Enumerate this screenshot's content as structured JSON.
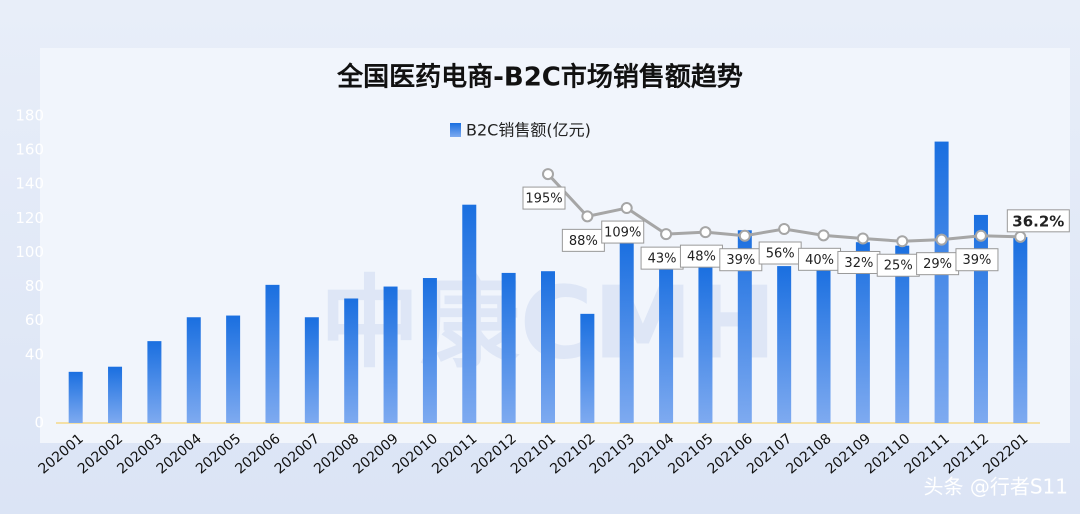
{
  "chart_data": {
    "type": "bar",
    "title": "全国医药电商-B2C市场销售额趋势",
    "categories": [
      "202001",
      "202002",
      "202003",
      "202004",
      "202005",
      "202006",
      "202007",
      "202008",
      "202009",
      "202010",
      "202011",
      "202012",
      "202101",
      "202102",
      "202103",
      "202104",
      "202105",
      "202106",
      "202107",
      "202108",
      "202109",
      "202110",
      "202111",
      "202112",
      "202201"
    ],
    "series": [
      {
        "name": "B2C销售额(亿元)",
        "type": "bar",
        "color": "#1a6fe0",
        "values": [
          30,
          33,
          48,
          62,
          63,
          81,
          62,
          73,
          80,
          85,
          128,
          88,
          89,
          64,
          107,
          95,
          92,
          113,
          92,
          92,
          106,
          104,
          165,
          122,
          109
        ]
      },
      {
        "type": "line",
        "axis": "y2",
        "color": "#a6a6a6",
        "values": [
          null,
          null,
          null,
          null,
          null,
          null,
          null,
          null,
          null,
          null,
          null,
          null,
          195,
          88,
          109,
          43,
          48,
          39,
          56,
          40,
          32,
          25,
          29,
          39,
          36.2
        ],
        "value_labels": [
          null,
          null,
          null,
          null,
          null,
          null,
          null,
          null,
          null,
          null,
          null,
          null,
          "195%",
          "88%",
          "109%",
          "43%",
          "48%",
          "39%",
          "56%",
          "40%",
          "32%",
          "25%",
          "29%",
          "39%",
          "36.2%"
        ]
      }
    ],
    "ylim": [
      0,
      180
    ],
    "yticks": [
      0,
      40,
      60,
      80,
      100,
      120,
      140,
      160,
      180
    ],
    "y2lim": [
      -435,
      342
    ],
    "watermark": "中康CMH",
    "source": "头条 @行者S11"
  }
}
